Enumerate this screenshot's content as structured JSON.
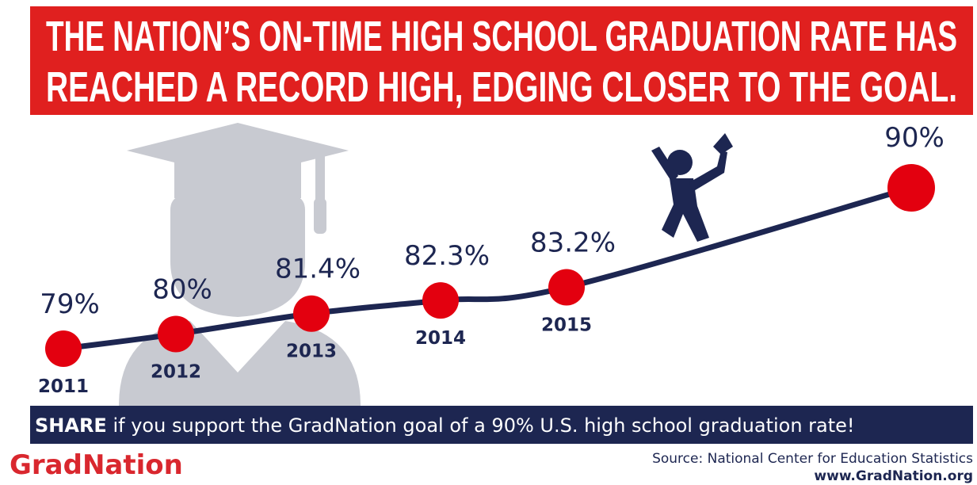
{
  "chart_data": {
    "type": "line",
    "title_lines": [
      "THE NATION’S ON-TIME HIGH SCHOOL GRADUATION RATE HAS",
      "REACHED A RECORD HIGH, EDGING CLOSER TO THE GOAL."
    ],
    "categories": [
      "2011",
      "2012",
      "2013",
      "2014",
      "2015",
      null
    ],
    "values": [
      79,
      80,
      81.4,
      82.3,
      83.2,
      90
    ],
    "value_labels": [
      "79%",
      "80%",
      "81.4%",
      "82.3%",
      "83.2%",
      "90%"
    ],
    "color": "#e3000f",
    "line_color": "#1d2651",
    "share_bold": "SHARE",
    "share_text": "if you support the GradNation goal of a 90% U.S. high school graduation rate!",
    "logo": "GradNation",
    "source": "Source: National Center for Education Statistics",
    "website": "www.GradNation.org"
  }
}
